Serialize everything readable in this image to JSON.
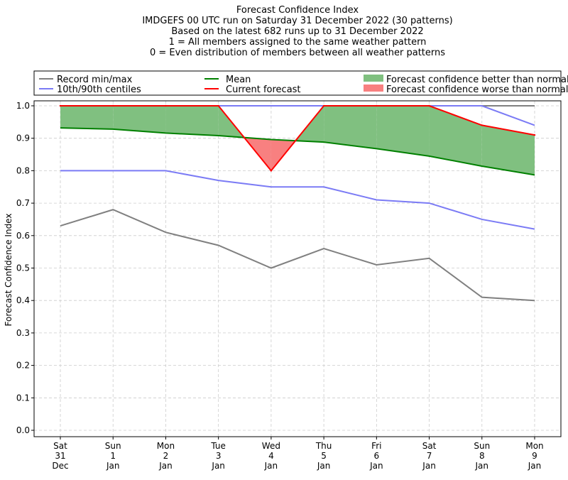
{
  "chart_data": {
    "type": "line",
    "title_lines": [
      "Forecast Confidence Index",
      "IMDGEFS 00 UTC run on Saturday 31 December 2022 (30 patterns)",
      "Based on the latest 682 runs up to 31 December 2022",
      "1 = All members assigned to the same weather pattern",
      "0 = Even distribution of members between all weather patterns"
    ],
    "ylabel": "Forecast Confidence Index",
    "xlabel": "",
    "ylim": [
      0,
      1
    ],
    "yticks": [
      "0.0",
      "0.1",
      "0.2",
      "0.3",
      "0.4",
      "0.5",
      "0.6",
      "0.7",
      "0.8",
      "0.9",
      "1.0"
    ],
    "grid": true,
    "categories": [
      [
        "Sat",
        "31",
        "Dec"
      ],
      [
        "Sun",
        "1",
        "Jan"
      ],
      [
        "Mon",
        "2",
        "Jan"
      ],
      [
        "Tue",
        "3",
        "Jan"
      ],
      [
        "Wed",
        "4",
        "Jan"
      ],
      [
        "Thu",
        "5",
        "Jan"
      ],
      [
        "Fri",
        "6",
        "Jan"
      ],
      [
        "Sat",
        "7",
        "Jan"
      ],
      [
        "Sun",
        "8",
        "Jan"
      ],
      [
        "Mon",
        "9",
        "Jan"
      ]
    ],
    "series": {
      "record_min": [
        0.63,
        0.68,
        0.61,
        0.57,
        0.5,
        0.56,
        0.51,
        0.53,
        0.41,
        0.4
      ],
      "record_max": [
        1.0,
        1.0,
        1.0,
        1.0,
        1.0,
        1.0,
        1.0,
        1.0,
        1.0,
        1.0
      ],
      "p10": [
        0.8,
        0.8,
        0.8,
        0.77,
        0.75,
        0.75,
        0.71,
        0.7,
        0.65,
        0.62
      ],
      "p90": [
        1.0,
        1.0,
        1.0,
        1.0,
        1.0,
        1.0,
        1.0,
        1.0,
        1.0,
        0.94
      ],
      "mean": [
        0.932,
        0.928,
        0.916,
        0.908,
        0.896,
        0.888,
        0.868,
        0.845,
        0.814,
        0.787
      ],
      "current": [
        1.0,
        1.0,
        1.0,
        1.0,
        0.8,
        1.0,
        1.0,
        1.0,
        0.94,
        0.91
      ]
    },
    "legend_position": "top",
    "legend": [
      {
        "key": "record",
        "label": "Record min/max",
        "kind": "line",
        "color": "#808080"
      },
      {
        "key": "mean",
        "label": "Mean",
        "kind": "line",
        "color": "#008000"
      },
      {
        "key": "better",
        "label": "Forecast confidence better than normal",
        "kind": "patch",
        "color": "#80c080"
      },
      {
        "key": "centiles",
        "label": "10th/90th centiles",
        "kind": "line",
        "color": "#7b7bf5"
      },
      {
        "key": "current",
        "label": "Current forecast",
        "kind": "line",
        "color": "#ff0000"
      },
      {
        "key": "worse",
        "label": "Forecast confidence worse than normal",
        "kind": "patch",
        "color": "#f88080"
      }
    ],
    "colors": {
      "record": "#808080",
      "centiles": "#7b7bf5",
      "max_line": "#0000cc",
      "mean": "#008000",
      "current": "#ff0000",
      "better_fill": "#80c080",
      "worse_fill": "#f88080",
      "grid": "#cccccc"
    }
  }
}
